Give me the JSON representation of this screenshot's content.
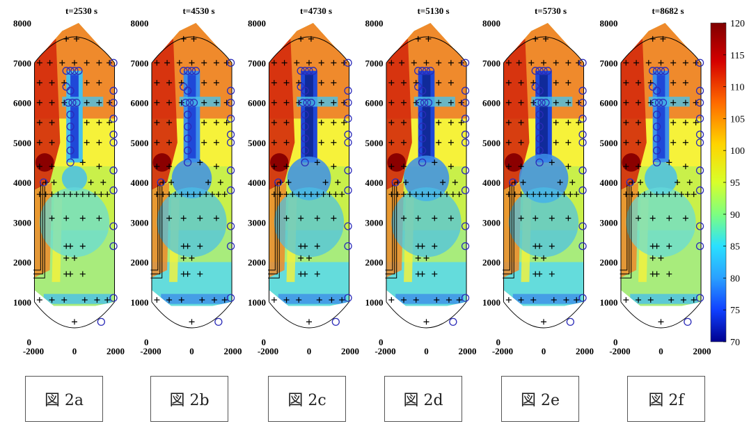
{
  "chart_data": {
    "type": "heatmap",
    "colorbar": {
      "min": 70,
      "max": 120,
      "ticks": [
        "120",
        "115",
        "110",
        "105",
        "100",
        "95",
        "90",
        "85",
        "80",
        "75",
        "70"
      ],
      "colormap": "jet"
    },
    "panels": [
      {
        "title": "t=2530 s",
        "caption": "図 2a",
        "cold_level": 0.35
      },
      {
        "title": "t=4530 s",
        "caption": "図 2b",
        "cold_level": 0.75
      },
      {
        "title": "t=4730 s",
        "caption": "図 2c",
        "cold_level": 0.85
      },
      {
        "title": "t=5130 s",
        "caption": "図 2d",
        "cold_level": 0.9
      },
      {
        "title": "t=5730 s",
        "caption": "図 2e",
        "cold_level": 1.0
      },
      {
        "title": "t=8682 s",
        "caption": "図 2f",
        "cold_level": 0.55
      }
    ],
    "y_ticks": [
      "8000",
      "7000",
      "6000",
      "5000",
      "4000",
      "3000",
      "2000",
      "1000",
      "0"
    ],
    "x_ticks": [
      "-2000",
      "0",
      "2000"
    ],
    "xlim": [
      -2000,
      2000
    ],
    "ylim": [
      0,
      8000
    ]
  }
}
